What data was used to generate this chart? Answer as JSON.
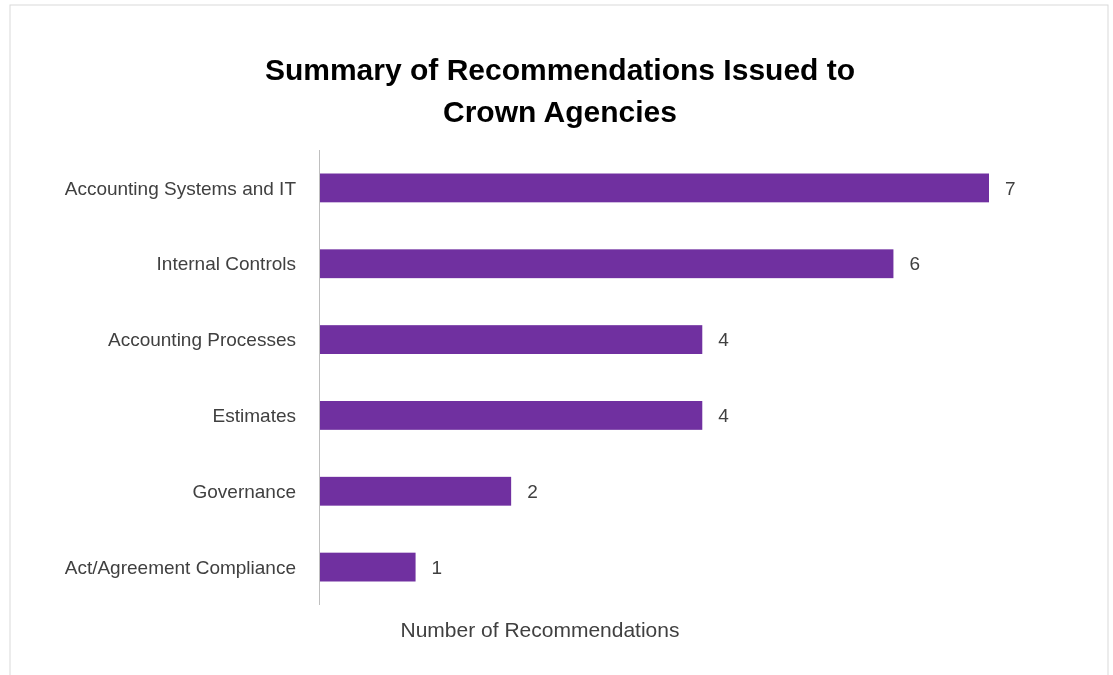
{
  "chart_data": {
    "type": "bar",
    "orientation": "horizontal",
    "title": "Summary of Recommendations Issued to\nCrown Agencies",
    "xlabel": "Number of Recommendations",
    "categories": [
      "Accounting Systems and IT",
      "Internal Controls",
      "Accounting Processes",
      "Estimates",
      "Governance",
      "Act/Agreement Compliance"
    ],
    "values": [
      7,
      6,
      4,
      4,
      2,
      1
    ],
    "color": "#7030a0",
    "data_labels": true
  }
}
